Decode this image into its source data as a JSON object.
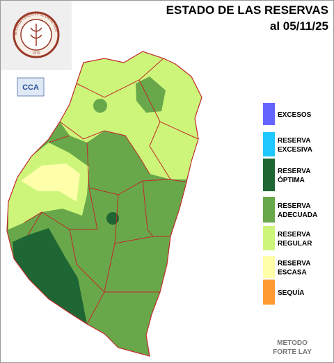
{
  "header": {
    "title": "ESTADO DE LAS RESERVAS",
    "date": "al 05/11/25"
  },
  "logo": {
    "ring_text": "BOLSA DE CEREALES DE ENTRE RIOS",
    "year": "1970"
  },
  "badge": "CCA",
  "legend": [
    {
      "lines": [
        "EXCESOS"
      ],
      "color": "#6464ff"
    },
    {
      "lines": [
        "RESERVA",
        "EXCESIVA"
      ],
      "color": "#1ec8ff"
    },
    {
      "lines": [
        "RESERVA",
        "ÓPTIMA"
      ],
      "color": "#1e6634"
    },
    {
      "lines": [
        "RESERVA",
        "ADECUADA"
      ],
      "color": "#69a84a"
    },
    {
      "lines": [
        "RESERVA",
        "REGULAR"
      ],
      "color": "#cdf57a"
    },
    {
      "lines": [
        "RESERVA",
        "ESCASA"
      ],
      "color": "#ffffaa"
    },
    {
      "lines": [
        "SEQUÍA"
      ],
      "color": "#ff9a33"
    }
  ],
  "footer": {
    "lines": [
      "METODO",
      "FORTE LAY"
    ]
  }
}
